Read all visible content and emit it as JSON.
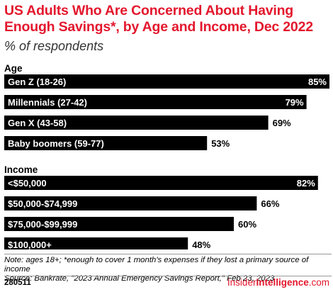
{
  "title": "US Adults Who Are Concerned About Having Enough Savings*, by Age and Income, Dec 2022",
  "subtitle": "% of respondents",
  "footnote": {
    "note": "Note: ages 18+; *enough to cover 1 month's expenses if they lost a primary source of income",
    "source": "Source: Bankrate, \"2023 Annual Emergency Savings Report,\" Feb 23, 2023",
    "id": "280511",
    "brand_part1": "Insider",
    "brand_part2": "Intelligence",
    "brand_suffix": ".com"
  },
  "chart_data": {
    "type": "bar",
    "orientation": "horizontal",
    "unit": "%",
    "xlim": [
      0,
      85
    ],
    "bar_color": "#000000",
    "groups": [
      {
        "name": "Age",
        "categories": [
          "Gen Z (18-26)",
          "Millennials (27-42)",
          "Gen X (43-58)",
          "Baby boomers (59-77)"
        ],
        "values": [
          85,
          79,
          69,
          53
        ]
      },
      {
        "name": "Income",
        "categories": [
          "<$50,000",
          "$50,000-$74,999",
          "$75,000-$99,999",
          "$100,000+"
        ],
        "values": [
          82,
          66,
          60,
          48
        ]
      }
    ]
  }
}
